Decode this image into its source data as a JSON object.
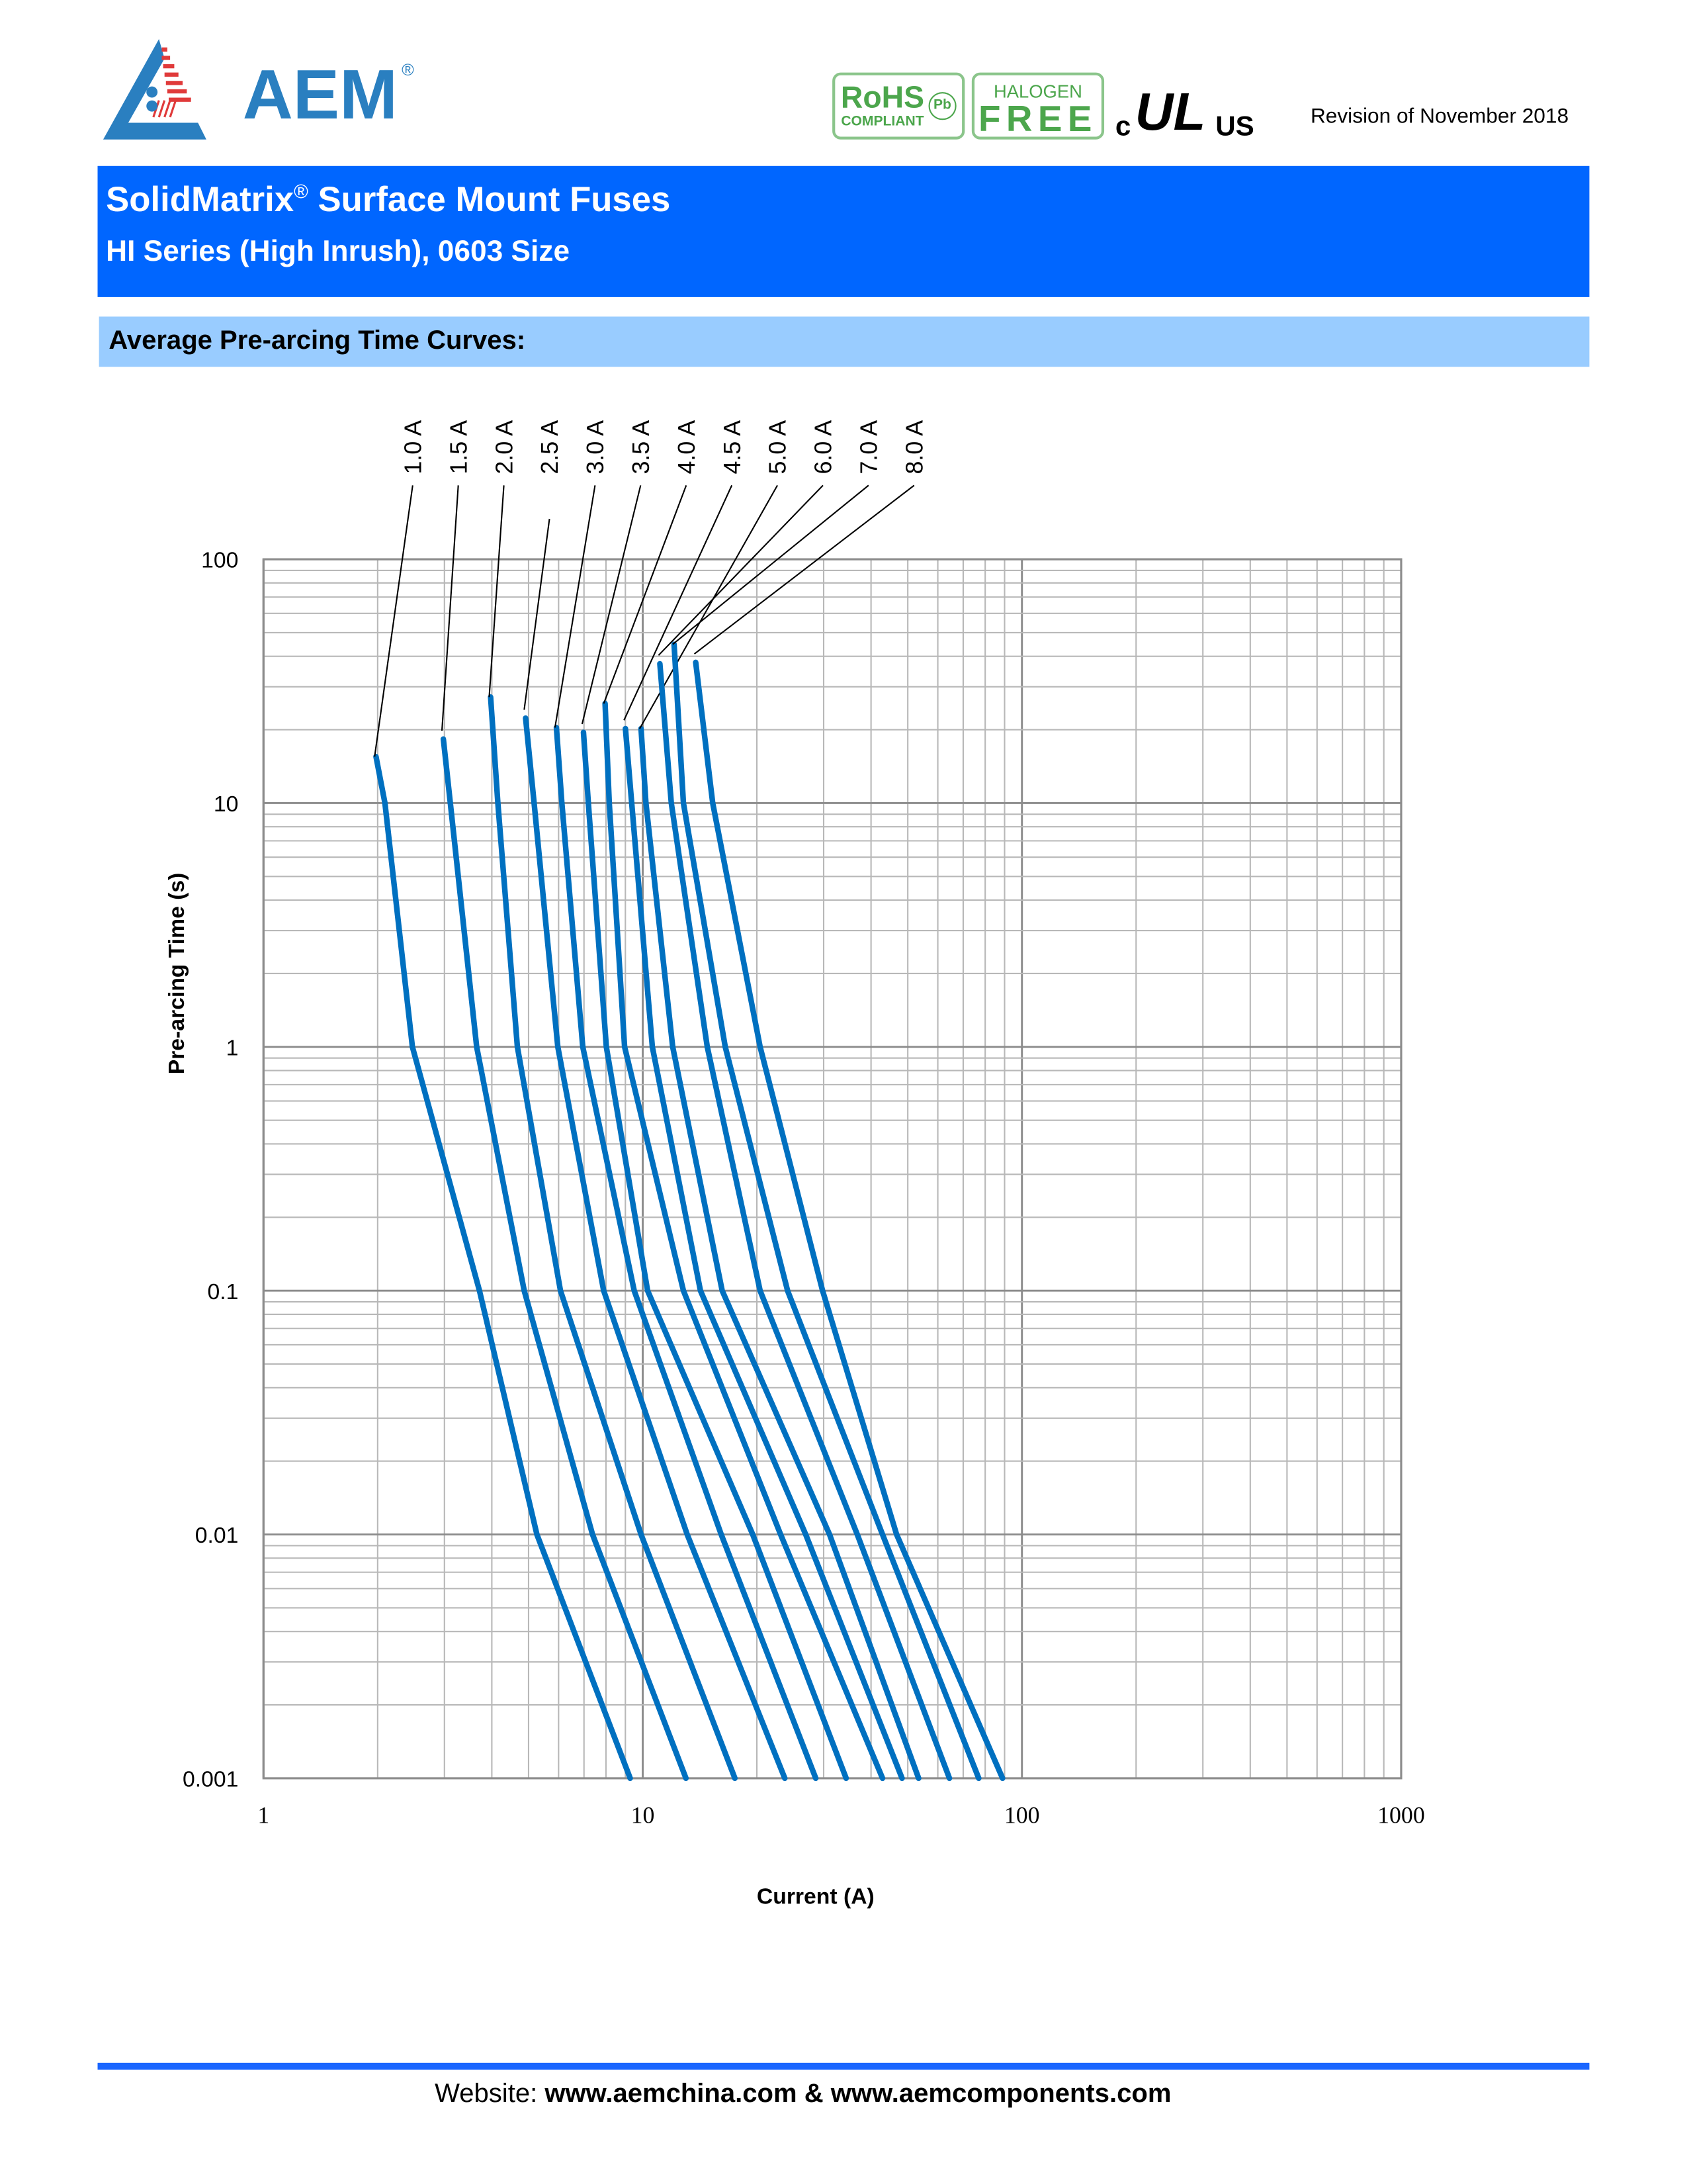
{
  "header": {
    "logo_text": "AEM",
    "badges": {
      "rohs": {
        "main": "RoHS",
        "sub": "COMPLIANT",
        "pb": "Pb"
      },
      "halogen": {
        "top": "HALOGEN",
        "bottom": "FREE"
      },
      "ul": {
        "left": "c",
        "mark": "UL",
        "right": "US"
      }
    },
    "revision": "Revision of November 2018"
  },
  "banner": {
    "title": "SolidMatrix",
    "title_reg": "®",
    "title_rest": " Surface Mount Fuses",
    "subtitle": "HI Series (High Inrush), 0603 Size"
  },
  "section": {
    "title": "Average Pre-arcing Time Curves:"
  },
  "chart_data": {
    "type": "line",
    "xlabel": "Current (A)",
    "ylabel": "Pre-arcing Time (s)",
    "x_scale": "log",
    "y_scale": "log",
    "xlim": [
      1,
      1000
    ],
    "ylim": [
      0.001,
      100
    ],
    "x_ticks": [
      "1",
      "10",
      "100",
      "1000"
    ],
    "y_ticks": [
      "100",
      "10",
      "1",
      "0.1",
      "0.01",
      "0.001"
    ],
    "grid": true,
    "legend": "labels above plot with leader lines",
    "line_color": "#0070c0",
    "series": [
      {
        "name": "1.0 A",
        "x": [
          1.98,
          2.09,
          2.47,
          3.71,
          5.26,
          9.27
        ],
        "y": [
          15.5,
          10,
          1,
          0.1,
          0.01,
          0.001
        ]
      },
      {
        "name": "1.5 A",
        "x": [
          2.98,
          3.11,
          3.65,
          4.87,
          7.37,
          13.0
        ],
        "y": [
          18.3,
          10,
          1,
          0.1,
          0.01,
          0.001
        ]
      },
      {
        "name": "2.0 A",
        "x": [
          3.97,
          4.15,
          4.67,
          6.07,
          9.9,
          17.5
        ],
        "y": [
          27.2,
          10,
          1,
          0.1,
          0.01,
          0.001
        ]
      },
      {
        "name": "2.5 A",
        "x": [
          4.91,
          5.17,
          5.97,
          7.89,
          13.1,
          23.7
        ],
        "y": [
          22.3,
          10,
          1,
          0.1,
          0.01,
          0.001
        ]
      },
      {
        "name": "3.0 A",
        "x": [
          5.92,
          6.12,
          6.95,
          9.5,
          16.1,
          28.6
        ],
        "y": [
          20.4,
          10,
          1,
          0.1,
          0.01,
          0.001
        ]
      },
      {
        "name": "3.5 A",
        "x": [
          6.98,
          7.19,
          8.02,
          10.3,
          19.5,
          34.4
        ],
        "y": [
          19.5,
          10,
          1,
          0.1,
          0.01,
          0.001
        ]
      },
      {
        "name": "4.0 A",
        "x": [
          7.96,
          8.16,
          8.96,
          12.8,
          23.1,
          42.9
        ],
        "y": [
          25.6,
          10,
          1,
          0.1,
          0.01,
          0.001
        ]
      },
      {
        "name": "4.5 A",
        "x": [
          9.0,
          9.35,
          10.6,
          14.2,
          26.9,
          48.3
        ],
        "y": [
          20.2,
          10,
          1,
          0.1,
          0.01,
          0.001
        ]
      },
      {
        "name": "5.0 A",
        "x": [
          9.9,
          10.2,
          12.0,
          16.2,
          31.1,
          53.4
        ],
        "y": [
          20.2,
          10,
          1,
          0.1,
          0.01,
          0.001
        ]
      },
      {
        "name": "6.0 A",
        "x": [
          11.1,
          11.9,
          14.8,
          20.4,
          36.8,
          64.4
        ],
        "y": [
          37.3,
          10,
          1,
          0.1,
          0.01,
          0.001
        ]
      },
      {
        "name": "7.0 A",
        "x": [
          12.1,
          12.8,
          16.5,
          24.1,
          42.9,
          76.9
        ],
        "y": [
          44.8,
          10,
          1,
          0.1,
          0.01,
          0.001
        ]
      },
      {
        "name": "8.0 A",
        "x": [
          13.8,
          15.3,
          20.4,
          29.8,
          46.7,
          88.9
        ],
        "y": [
          37.8,
          10,
          1,
          0.1,
          0.01,
          0.001
        ]
      }
    ]
  },
  "footer": {
    "prefix": "Website: ",
    "links": "www.aemchina.com & www.aemcomponents.com"
  }
}
